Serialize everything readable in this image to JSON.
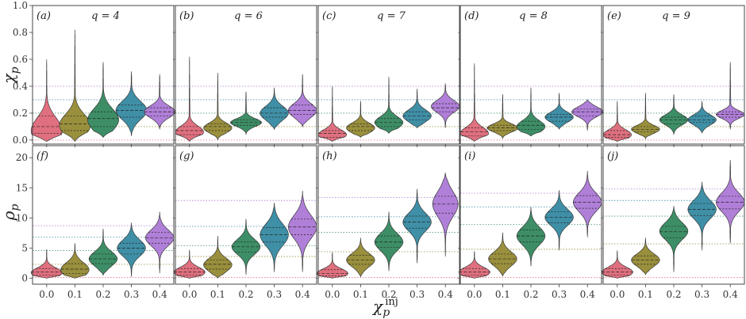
{
  "chart_data": {
    "type": "violin",
    "xlabel": "χ_p^inj",
    "xlabel_main": "χ",
    "xlabel_sub": "p",
    "xlabel_sup": "inj",
    "categories": [
      "0.0",
      "0.1",
      "0.2",
      "0.3",
      "0.4"
    ],
    "colors": [
      "#e0707f",
      "#9a8f3c",
      "#3d8e66",
      "#3f8fa6",
      "#b07fd8"
    ],
    "rows": [
      {
        "ylabel_main": "χ",
        "ylabel_sub": "p",
        "ylim": [
          -0.03,
          1.0
        ],
        "yticks": [
          "0.0",
          "0.2",
          "0.4",
          "0.6",
          "0.8",
          "1.0"
        ],
        "ref_lines": [
          0.0,
          0.1,
          0.2,
          0.3,
          0.4
        ],
        "panels": [
          {
            "label": "(a)",
            "q": "q = 4",
            "series": [
              {
                "min": -0.01,
                "max": 0.6,
                "q1": 0.05,
                "median": 0.1,
                "q3": 0.18,
                "mode": 0.07,
                "width": 0.55
              },
              {
                "min": -0.01,
                "max": 0.82,
                "q1": 0.07,
                "median": 0.12,
                "q3": 0.18,
                "mode": 0.11,
                "width": 0.55
              },
              {
                "min": 0.02,
                "max": 0.58,
                "q1": 0.1,
                "median": 0.16,
                "q3": 0.21,
                "mode": 0.15,
                "width": 0.55
              },
              {
                "min": 0.03,
                "max": 0.51,
                "q1": 0.17,
                "median": 0.22,
                "q3": 0.26,
                "mode": 0.22,
                "width": 0.55
              },
              {
                "min": 0.08,
                "max": 0.49,
                "q1": 0.18,
                "median": 0.21,
                "q3": 0.24,
                "mode": 0.21,
                "width": 0.55
              }
            ]
          },
          {
            "label": "(b)",
            "q": "q = 6",
            "series": [
              {
                "min": -0.01,
                "max": 0.62,
                "q1": 0.04,
                "median": 0.07,
                "q3": 0.1,
                "mode": 0.06,
                "width": 0.5
              },
              {
                "min": 0.0,
                "max": 0.5,
                "q1": 0.07,
                "median": 0.1,
                "q3": 0.12,
                "mode": 0.09,
                "width": 0.5
              },
              {
                "min": 0.04,
                "max": 0.36,
                "q1": 0.11,
                "median": 0.13,
                "q3": 0.15,
                "mode": 0.13,
                "width": 0.55
              },
              {
                "min": 0.08,
                "max": 0.39,
                "q1": 0.17,
                "median": 0.2,
                "q3": 0.24,
                "mode": 0.2,
                "width": 0.5
              },
              {
                "min": 0.1,
                "max": 0.49,
                "q1": 0.19,
                "median": 0.22,
                "q3": 0.26,
                "mode": 0.22,
                "width": 0.5
              }
            ]
          },
          {
            "label": "(c)",
            "q": "q = 7",
            "series": [
              {
                "min": -0.01,
                "max": 0.4,
                "q1": 0.02,
                "median": 0.05,
                "q3": 0.07,
                "mode": 0.04,
                "width": 0.5
              },
              {
                "min": 0.02,
                "max": 0.29,
                "q1": 0.07,
                "median": 0.1,
                "q3": 0.12,
                "mode": 0.09,
                "width": 0.5
              },
              {
                "min": 0.05,
                "max": 0.47,
                "q1": 0.1,
                "median": 0.13,
                "q3": 0.16,
                "mode": 0.13,
                "width": 0.5
              },
              {
                "min": 0.09,
                "max": 0.38,
                "q1": 0.15,
                "median": 0.18,
                "q3": 0.21,
                "mode": 0.18,
                "width": 0.5
              },
              {
                "min": 0.09,
                "max": 0.42,
                "q1": 0.21,
                "median": 0.24,
                "q3": 0.27,
                "mode": 0.25,
                "width": 0.5
              }
            ]
          },
          {
            "label": "(d)",
            "q": "q = 8",
            "series": [
              {
                "min": -0.01,
                "max": 0.57,
                "q1": 0.03,
                "median": 0.06,
                "q3": 0.09,
                "mode": 0.05,
                "width": 0.5
              },
              {
                "min": 0.01,
                "max": 0.34,
                "q1": 0.07,
                "median": 0.09,
                "q3": 0.11,
                "mode": 0.09,
                "width": 0.55
              },
              {
                "min": 0.03,
                "max": 0.39,
                "q1": 0.08,
                "median": 0.11,
                "q3": 0.14,
                "mode": 0.1,
                "width": 0.5
              },
              {
                "min": 0.08,
                "max": 0.35,
                "q1": 0.14,
                "median": 0.17,
                "q3": 0.19,
                "mode": 0.17,
                "width": 0.5
              },
              {
                "min": 0.07,
                "max": 0.3,
                "q1": 0.18,
                "median": 0.21,
                "q3": 0.23,
                "mode": 0.21,
                "width": 0.55
              }
            ]
          },
          {
            "label": "(e)",
            "q": "q = 9",
            "series": [
              {
                "min": -0.01,
                "max": 0.29,
                "q1": 0.02,
                "median": 0.04,
                "q3": 0.07,
                "mode": 0.04,
                "width": 0.5
              },
              {
                "min": 0.01,
                "max": 0.35,
                "q1": 0.06,
                "median": 0.08,
                "q3": 0.1,
                "mode": 0.08,
                "width": 0.5
              },
              {
                "min": 0.04,
                "max": 0.34,
                "q1": 0.12,
                "median": 0.15,
                "q3": 0.17,
                "mode": 0.15,
                "width": 0.5
              },
              {
                "min": 0.05,
                "max": 0.29,
                "q1": 0.13,
                "median": 0.15,
                "q3": 0.18,
                "mode": 0.15,
                "width": 0.5
              },
              {
                "min": 0.08,
                "max": 0.58,
                "q1": 0.17,
                "median": 0.19,
                "q3": 0.21,
                "mode": 0.19,
                "width": 0.5
              }
            ]
          }
        ]
      },
      {
        "ylabel_main": "ρ",
        "ylabel_sub": "p",
        "ylim": [
          -1,
          22
        ],
        "yticks": [
          "0",
          "5",
          "10",
          "15",
          "20"
        ],
        "panels": [
          {
            "label": "(f)",
            "ref_lines": [
              0.1,
              2.3,
              4.6,
              6.8,
              8.7
            ],
            "series": [
              {
                "min": 0.0,
                "max": 4.8,
                "q1": 0.5,
                "median": 1.0,
                "q3": 1.6,
                "mode": 0.9,
                "width": 0.55
              },
              {
                "min": 0.0,
                "max": 5.8,
                "q1": 0.8,
                "median": 1.5,
                "q3": 2.4,
                "mode": 1.4,
                "width": 0.5
              },
              {
                "min": 0.5,
                "max": 8.2,
                "q1": 2.4,
                "median": 3.2,
                "q3": 4.0,
                "mode": 3.2,
                "width": 0.5
              },
              {
                "min": 0.2,
                "max": 9.2,
                "q1": 4.0,
                "median": 5.0,
                "q3": 5.8,
                "mode": 5.0,
                "width": 0.5
              },
              {
                "min": 0.8,
                "max": 11.0,
                "q1": 5.8,
                "median": 6.7,
                "q3": 7.6,
                "mode": 6.7,
                "width": 0.5
              }
            ]
          },
          {
            "label": "(g)",
            "ref_lines": [
              0.1,
              3.6,
              5.4,
              8.6,
              12.9
            ],
            "series": [
              {
                "min": 0.0,
                "max": 4.7,
                "q1": 0.5,
                "median": 1.0,
                "q3": 1.6,
                "mode": 1.0,
                "width": 0.55
              },
              {
                "min": 0.0,
                "max": 7.0,
                "q1": 1.5,
                "median": 2.3,
                "q3": 3.0,
                "mode": 2.2,
                "width": 0.5
              },
              {
                "min": 0.6,
                "max": 9.8,
                "q1": 4.3,
                "median": 5.2,
                "q3": 6.0,
                "mode": 5.2,
                "width": 0.5
              },
              {
                "min": 1.0,
                "max": 12.5,
                "q1": 6.0,
                "median": 7.2,
                "q3": 8.4,
                "mode": 7.2,
                "width": 0.5
              },
              {
                "min": 1.0,
                "max": 14.5,
                "q1": 7.2,
                "median": 8.5,
                "q3": 9.8,
                "mode": 8.5,
                "width": 0.5
              }
            ]
          },
          {
            "label": "(h)",
            "ref_lines": [
              0.1,
              4.4,
              7.6,
              10.2,
              13.4
            ],
            "series": [
              {
                "min": 0.0,
                "max": 4.3,
                "q1": 0.4,
                "median": 0.8,
                "q3": 1.4,
                "mode": 0.8,
                "width": 0.55
              },
              {
                "min": 0.2,
                "max": 6.7,
                "q1": 2.3,
                "median": 3.0,
                "q3": 3.8,
                "mode": 3.0,
                "width": 0.5
              },
              {
                "min": 1.2,
                "max": 11.0,
                "q1": 5.1,
                "median": 6.0,
                "q3": 7.0,
                "mode": 6.0,
                "width": 0.5
              },
              {
                "min": 2.5,
                "max": 14.8,
                "q1": 8.3,
                "median": 9.3,
                "q3": 10.3,
                "mode": 9.3,
                "width": 0.5
              },
              {
                "min": 3.6,
                "max": 17.5,
                "q1": 10.8,
                "median": 12.3,
                "q3": 13.6,
                "mode": 12.3,
                "width": 0.45
              }
            ]
          },
          {
            "label": "(i)",
            "ref_lines": [
              0.1,
              4.8,
              8.9,
              11.8,
              14.1
            ],
            "series": [
              {
                "min": 0.0,
                "max": 4.5,
                "q1": 0.5,
                "median": 1.0,
                "q3": 1.6,
                "mode": 1.0,
                "width": 0.55
              },
              {
                "min": 0.3,
                "max": 7.6,
                "q1": 2.4,
                "median": 3.2,
                "q3": 4.0,
                "mode": 3.2,
                "width": 0.5
              },
              {
                "min": 2.0,
                "max": 11.8,
                "q1": 6.0,
                "median": 7.0,
                "q3": 8.0,
                "mode": 7.0,
                "width": 0.5
              },
              {
                "min": 4.6,
                "max": 14.6,
                "q1": 9.2,
                "median": 10.1,
                "q3": 11.0,
                "mode": 10.1,
                "width": 0.5
              },
              {
                "min": 6.8,
                "max": 17.8,
                "q1": 11.6,
                "median": 12.6,
                "q3": 13.7,
                "mode": 12.6,
                "width": 0.5
              }
            ]
          },
          {
            "label": "(j)",
            "ref_lines": [
              0.1,
              5.7,
              10.3,
              12.9,
              14.8
            ],
            "series": [
              {
                "min": 0.0,
                "max": 4.6,
                "q1": 0.5,
                "median": 1.0,
                "q3": 1.6,
                "mode": 1.0,
                "width": 0.55
              },
              {
                "min": 0.6,
                "max": 6.7,
                "q1": 2.3,
                "median": 3.0,
                "q3": 3.7,
                "mode": 3.0,
                "width": 0.5
              },
              {
                "min": 1.0,
                "max": 12.0,
                "q1": 6.7,
                "median": 7.7,
                "q3": 8.6,
                "mode": 7.8,
                "width": 0.5
              },
              {
                "min": 4.6,
                "max": 16.0,
                "q1": 10.4,
                "median": 11.4,
                "q3": 12.4,
                "mode": 11.4,
                "width": 0.5
              },
              {
                "min": 5.8,
                "max": 19.6,
                "q1": 11.5,
                "median": 12.6,
                "q3": 13.6,
                "mode": 12.6,
                "width": 0.5
              }
            ]
          }
        ]
      }
    ]
  }
}
